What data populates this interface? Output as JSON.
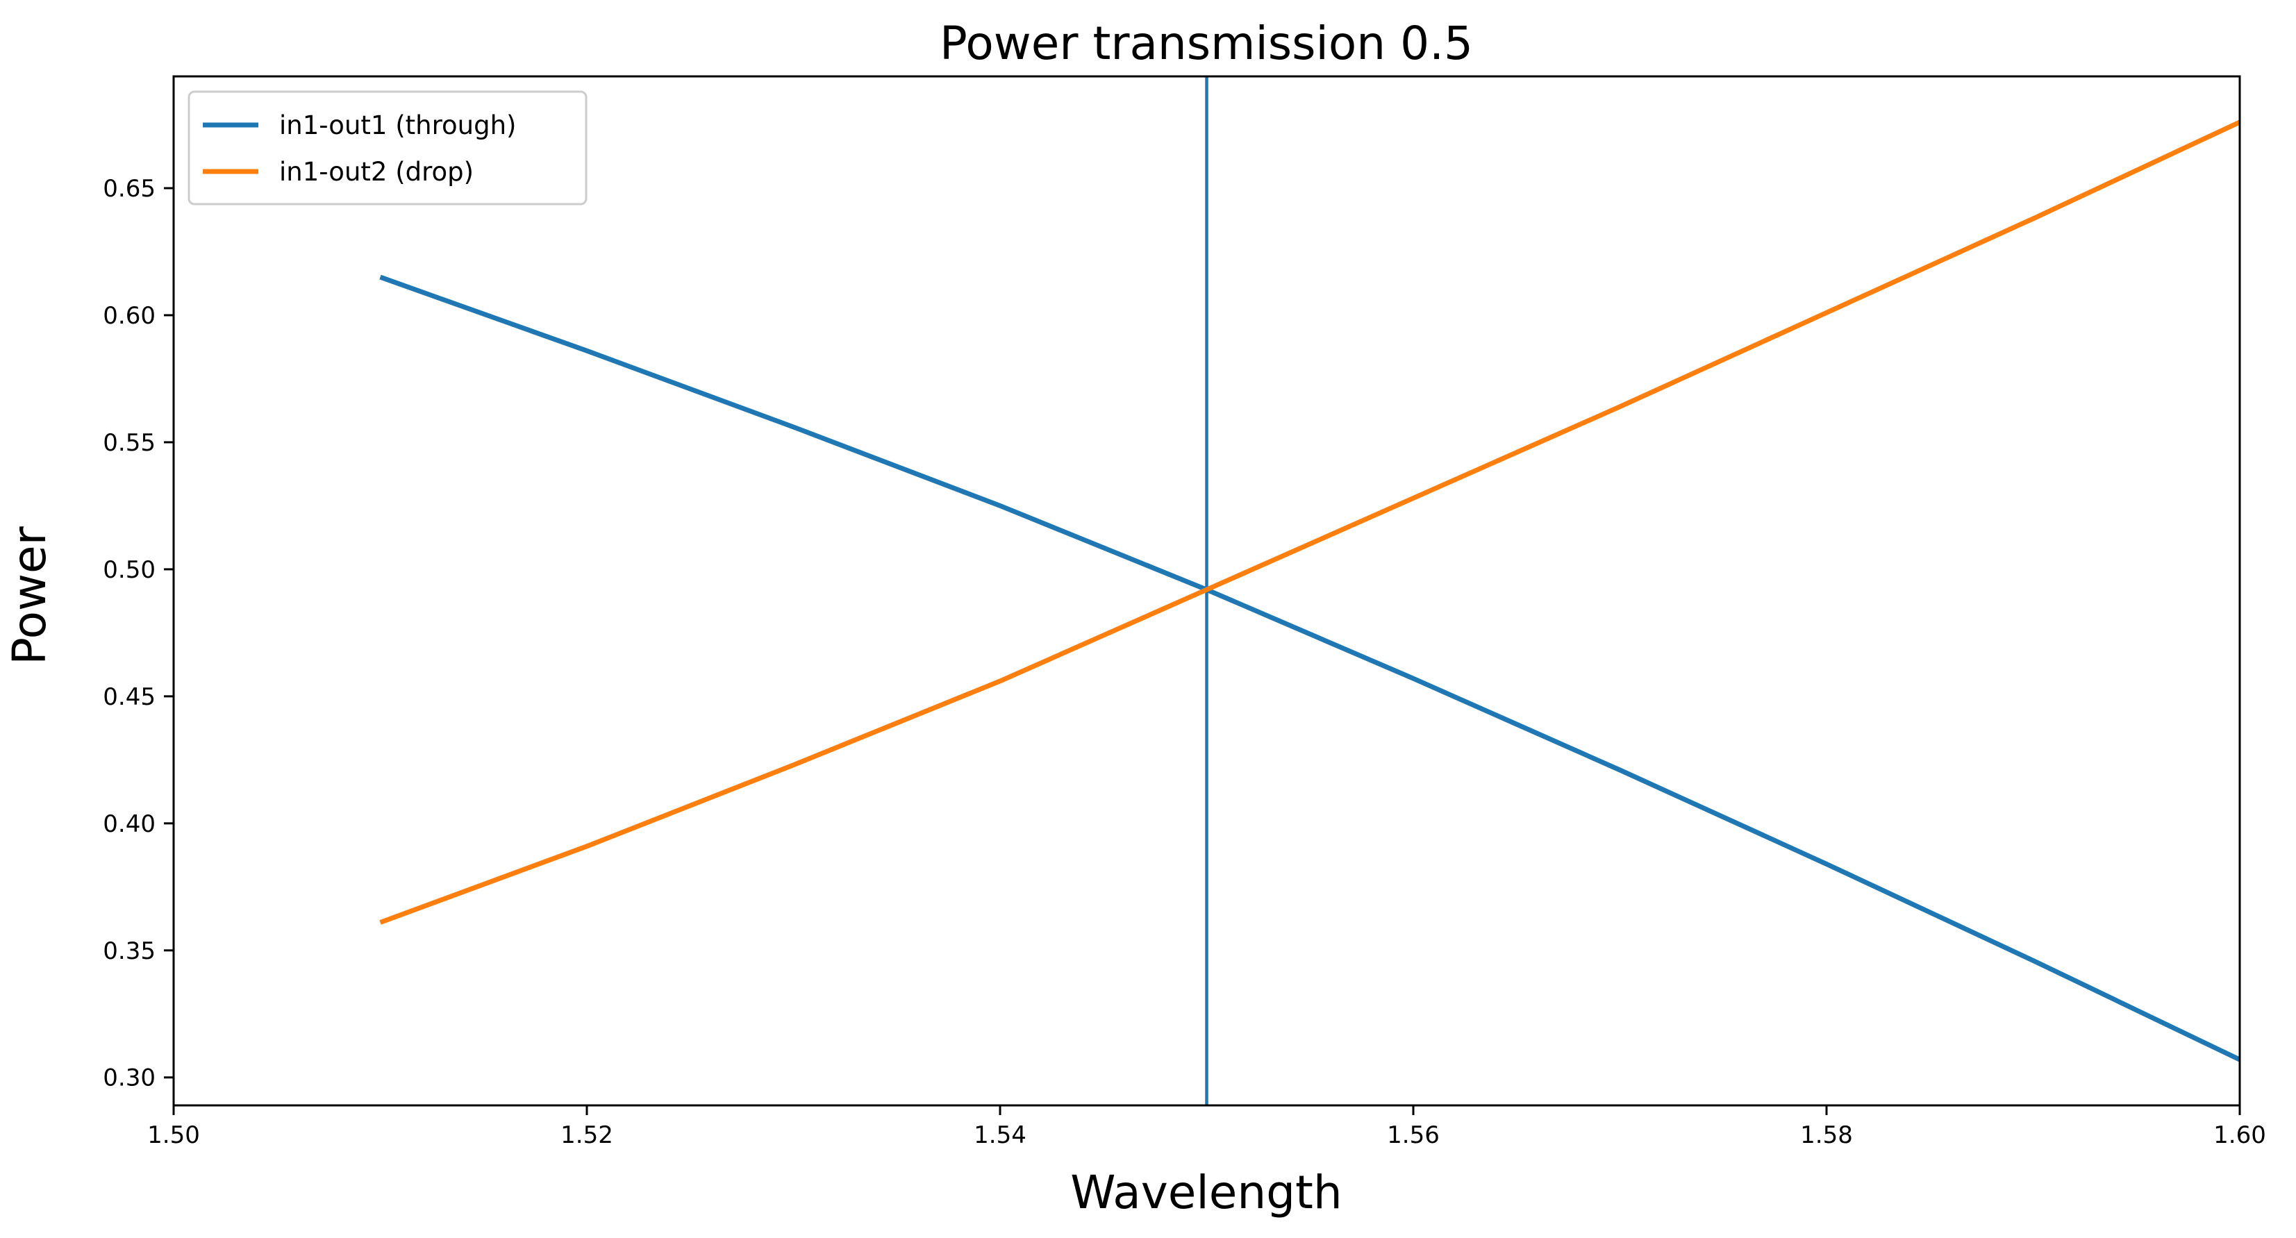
{
  "chart_data": {
    "type": "line",
    "title": "Power transmission 0.5",
    "xlabel": "Wavelength",
    "ylabel": "Power",
    "xlim": [
      1.5,
      1.6
    ],
    "ylim": [
      0.289,
      0.694
    ],
    "xticks": [
      "1.50",
      "1.52",
      "1.54",
      "1.56",
      "1.58",
      "1.60"
    ],
    "yticks": [
      "0.30",
      "0.35",
      "0.40",
      "0.45",
      "0.50",
      "0.55",
      "0.60",
      "0.65"
    ],
    "grid": false,
    "legend_position": "top-left",
    "series": [
      {
        "name": "in1-out1 (through)",
        "color": "#1f77b4",
        "x": [
          1.51,
          1.52,
          1.53,
          1.54,
          1.55,
          1.56,
          1.57,
          1.58,
          1.59,
          1.6
        ],
        "y": [
          0.615,
          0.586,
          0.556,
          0.525,
          0.492,
          0.457,
          0.421,
          0.384,
          0.346,
          0.307
        ]
      },
      {
        "name": "in1-out2 (drop)",
        "color": "#ff7f0e",
        "x": [
          1.51,
          1.52,
          1.53,
          1.54,
          1.55,
          1.56,
          1.57,
          1.58,
          1.59,
          1.6
        ],
        "y": [
          0.361,
          0.391,
          0.423,
          0.456,
          0.492,
          0.528,
          0.564,
          0.601,
          0.638,
          0.676
        ]
      }
    ],
    "vlines": [
      {
        "x": 1.55,
        "color": "#1f77b4"
      }
    ]
  }
}
